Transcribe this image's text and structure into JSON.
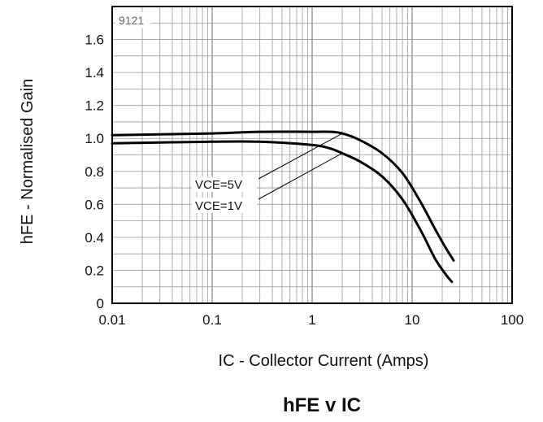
{
  "chart_data": {
    "type": "line",
    "title": "hFE v IC",
    "xlabel": "IC - Collector Current (Amps)",
    "ylabel": "hFE - Normalised Gain",
    "xscale": "log",
    "xlim": [
      0.01,
      100
    ],
    "ylim": [
      0,
      1.8
    ],
    "x_ticks": [
      "0.01",
      "0.1",
      "1",
      "10",
      "100"
    ],
    "y_ticks": [
      "0",
      "0.2",
      "0.4",
      "0.6",
      "0.8",
      "1.0",
      "1.2",
      "1.4",
      "1.6"
    ],
    "grid": true,
    "code_label": "9121",
    "series": [
      {
        "name": "VCE=5V",
        "x": [
          0.01,
          0.1,
          0.3,
          1,
          1.5,
          2,
          3,
          5,
          8,
          12,
          17,
          22,
          26
        ],
        "y": [
          1.02,
          1.03,
          1.04,
          1.04,
          1.04,
          1.03,
          0.99,
          0.91,
          0.79,
          0.62,
          0.45,
          0.33,
          0.26
        ]
      },
      {
        "name": "VCE=1V",
        "x": [
          0.01,
          0.1,
          0.3,
          1,
          1.5,
          2,
          3,
          5,
          8,
          12,
          17,
          22,
          25
        ],
        "y": [
          0.97,
          0.98,
          0.98,
          0.96,
          0.94,
          0.91,
          0.86,
          0.77,
          0.63,
          0.45,
          0.27,
          0.17,
          0.13
        ]
      }
    ],
    "annotations": [
      {
        "text": "VCE=5V",
        "series": 0
      },
      {
        "text": "VCE=1V",
        "series": 1
      }
    ]
  }
}
